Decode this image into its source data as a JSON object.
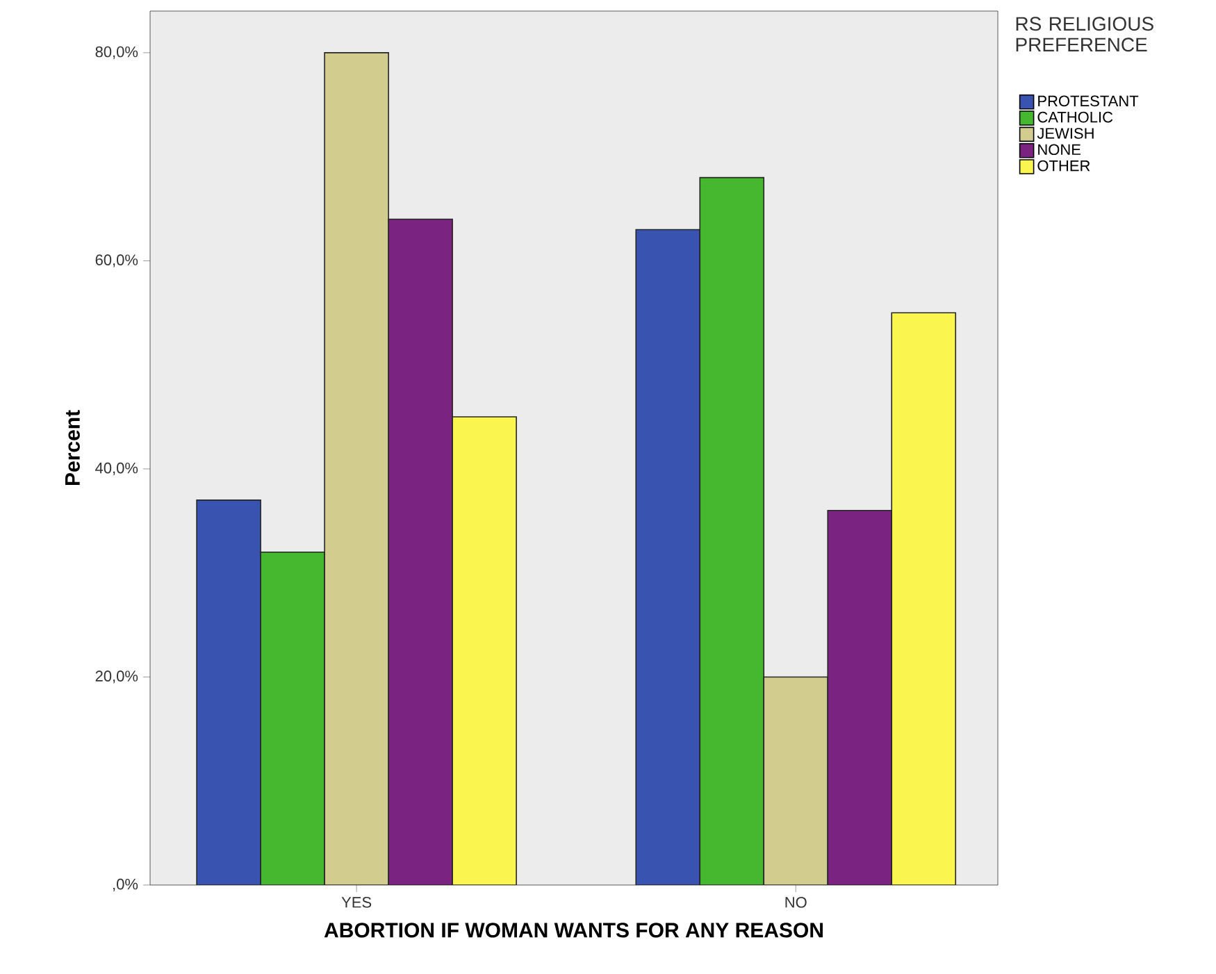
{
  "chart_data": {
    "type": "bar",
    "xlabel": "ABORTION IF WOMAN WANTS FOR ANY REASON",
    "ylabel": "Percent",
    "legend_title": "RS RELIGIOUS PREFERENCE",
    "categories": [
      "YES",
      "NO"
    ],
    "series": [
      {
        "name": "PROTESTANT",
        "color": "#3953b0",
        "values": [
          37,
          63
        ]
      },
      {
        "name": "CATHOLIC",
        "color": "#45b82f",
        "values": [
          32,
          68
        ]
      },
      {
        "name": "JEWISH",
        "color": "#d2cc8e",
        "values": [
          80,
          20
        ]
      },
      {
        "name": "NONE",
        "color": "#7a2380",
        "values": [
          64,
          36
        ]
      },
      {
        "name": "OTHER",
        "color": "#fbf64f",
        "values": [
          45,
          55
        ]
      }
    ],
    "ylim": [
      0,
      84
    ],
    "yticks": [
      {
        "value": 0,
        "label": ",0%"
      },
      {
        "value": 20,
        "label": "20,0%"
      },
      {
        "value": 40,
        "label": "40,0%"
      },
      {
        "value": 60,
        "label": "60,0%"
      },
      {
        "value": 80,
        "label": "80,0%"
      }
    ],
    "grid": false,
    "legend": "right"
  }
}
